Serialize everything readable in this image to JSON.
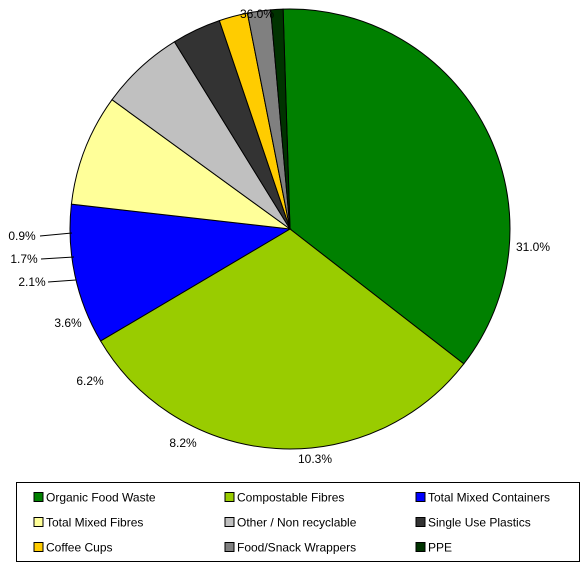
{
  "chart_data": {
    "type": "pie",
    "start_angle_deg": 268.2,
    "direction": "clockwise",
    "legend_position": "bottom",
    "slices": [
      {
        "label": "Organic Food Waste",
        "value": 36.0,
        "value_label": "36.0%",
        "color": "#008000"
      },
      {
        "label": "Compostable Fibres",
        "value": 31.0,
        "value_label": "31.0%",
        "color": "#99CC00"
      },
      {
        "label": "Total Mixed Containers",
        "value": 10.3,
        "value_label": "10.3%",
        "color": "#0000FF"
      },
      {
        "label": "Total Mixed Fibres",
        "value": 8.2,
        "value_label": "8.2%",
        "color": "#FFFF99"
      },
      {
        "label": "Other / Non recyclable",
        "value": 6.2,
        "value_label": "6.2%",
        "color": "#C0C0C0"
      },
      {
        "label": "Single Use Plastics",
        "value": 3.6,
        "value_label": "3.6%",
        "color": "#333333"
      },
      {
        "label": "Coffee Cups",
        "value": 2.1,
        "value_label": "2.1%",
        "color": "#FFCC00"
      },
      {
        "label": "Food/Snack Wrappers",
        "value": 1.7,
        "value_label": "1.7%",
        "color": "#808080"
      },
      {
        "label": "PPE",
        "value": 0.9,
        "value_label": "0.9%",
        "color": "#003300"
      }
    ]
  }
}
